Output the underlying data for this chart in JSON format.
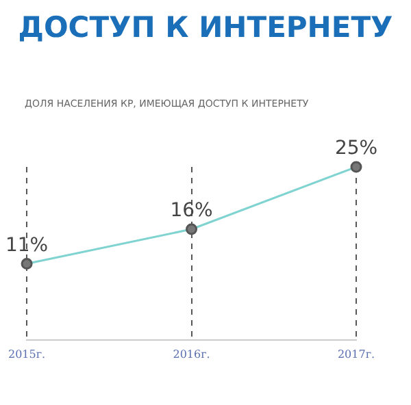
{
  "chart_data": {
    "type": "line",
    "title": "ДОСТУП К ИНТЕРНЕТУ",
    "subtitle": "ДОЛЯ НАСЕЛЕНИЯ КР, ИМЕЮЩАЯ ДОСТУП К ИНТЕРНЕТУ",
    "categories": [
      "2015г.",
      "2016г.",
      "2017г."
    ],
    "series": [
      {
        "color": "#7fd3d0",
        "values": [
          11,
          16,
          25
        ],
        "value_labels": [
          "11%",
          "16%",
          "25%"
        ]
      }
    ],
    "marker": "circle",
    "grid": "x",
    "legend": false,
    "tick_labels": "x"
  }
}
